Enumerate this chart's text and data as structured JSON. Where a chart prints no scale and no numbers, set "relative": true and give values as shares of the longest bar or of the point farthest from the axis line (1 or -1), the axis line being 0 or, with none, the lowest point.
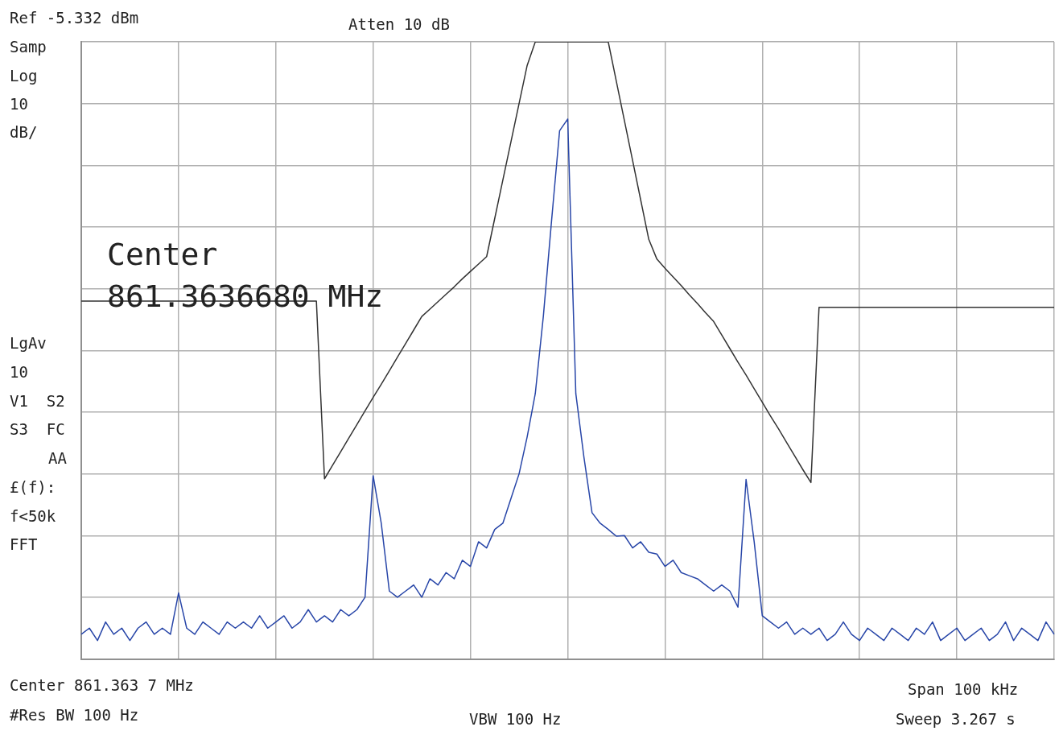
{
  "chart_data": {
    "type": "line",
    "relative": true,
    "grid": true,
    "legend": false,
    "marker": "none",
    "line_style": "solid",
    "categories": [
      null,
      null,
      null,
      null,
      null,
      null,
      null,
      null,
      null,
      null,
      null,
      null,
      null,
      null,
      null,
      null,
      null,
      null,
      null,
      null,
      null,
      null,
      null,
      null,
      null,
      null,
      null,
      null,
      null,
      null,
      null,
      null,
      null,
      null,
      null,
      null,
      null,
      null,
      null,
      null,
      null,
      null,
      null,
      null,
      null,
      null,
      null,
      null,
      null,
      null,
      null,
      null,
      null,
      null,
      null,
      null,
      null,
      null,
      null,
      null,
      null,
      null,
      null,
      null,
      null,
      null,
      null,
      null,
      null,
      null,
      null,
      null,
      null,
      null,
      null,
      null,
      null,
      null,
      null,
      null,
      null,
      null,
      null,
      null,
      null,
      null,
      null,
      null,
      null,
      null,
      null,
      null,
      null,
      null,
      null,
      null,
      null,
      null,
      null,
      null,
      null,
      null,
      null,
      null,
      null,
      null,
      null,
      null,
      null,
      null,
      null,
      null,
      null,
      null,
      null,
      null,
      null,
      null,
      null,
      null,
      null
    ],
    "series": [
      {
        "color": "#2846a8",
        "values": [
          0.04,
          0.05,
          0.03,
          0.06,
          0.04,
          0.05,
          0.03,
          0.05,
          0.06,
          0.04,
          0.05,
          0.04,
          0.107,
          0.05,
          0.04,
          0.06,
          0.05,
          0.04,
          0.06,
          0.05,
          0.06,
          0.05,
          0.07,
          0.05,
          0.06,
          0.07,
          0.05,
          0.06,
          0.08,
          0.06,
          0.07,
          0.06,
          0.08,
          0.07,
          0.08,
          0.1,
          0.297,
          0.22,
          0.11,
          0.1,
          0.11,
          0.12,
          0.1,
          0.13,
          0.12,
          0.14,
          0.13,
          0.16,
          0.15,
          0.19,
          0.18,
          0.21,
          0.22,
          0.26,
          0.3,
          0.36,
          0.43,
          0.556,
          0.709,
          0.856,
          0.875,
          0.43,
          0.327,
          0.237,
          0.22,
          0.21,
          0.199,
          0.2,
          0.18,
          0.19,
          0.173,
          0.17,
          0.15,
          0.16,
          0.14,
          0.135,
          0.13,
          0.12,
          0.11,
          0.12,
          0.11,
          0.084,
          0.291,
          0.19,
          0.07,
          0.06,
          0.05,
          0.06,
          0.04,
          0.05,
          0.04,
          0.05,
          0.03,
          0.04,
          0.06,
          0.04,
          0.03,
          0.05,
          0.04,
          0.03,
          0.05,
          0.04,
          0.03,
          0.05,
          0.04,
          0.06,
          0.03,
          0.04,
          0.05,
          0.03,
          0.04,
          0.05,
          0.03,
          0.04,
          0.06,
          0.03,
          0.05,
          0.04,
          0.03,
          0.06,
          0.04
        ]
      },
      {
        "color": "#333333",
        "values": [
          0.58,
          0.58,
          0.58,
          0.58,
          0.58,
          0.58,
          0.58,
          0.58,
          0.58,
          0.58,
          0.58,
          0.58,
          0.58,
          0.58,
          0.58,
          0.58,
          0.58,
          0.58,
          0.58,
          0.58,
          0.58,
          0.58,
          0.58,
          0.58,
          0.58,
          0.58,
          0.58,
          0.58,
          0.58,
          0.58,
          0.292,
          0.314,
          0.336,
          0.358,
          0.38,
          0.402,
          0.424,
          0.445,
          0.467,
          0.489,
          0.511,
          0.533,
          0.555,
          0.567,
          0.579,
          0.591,
          0.603,
          0.616,
          0.628,
          0.64,
          0.652,
          0.714,
          0.776,
          0.838,
          0.9,
          0.962,
          1,
          1,
          1,
          1,
          1,
          1,
          1,
          1,
          1,
          1,
          0.936,
          0.872,
          0.808,
          0.744,
          0.68,
          0.648,
          0.633,
          0.619,
          0.605,
          0.59,
          0.576,
          0.561,
          0.547,
          0.525,
          0.503,
          0.481,
          0.46,
          0.438,
          0.416,
          0.394,
          0.373,
          0.351,
          0.329,
          0.307,
          0.286,
          0.57,
          0.57,
          0.57,
          0.57,
          0.57,
          0.57,
          0.57,
          0.57,
          0.57,
          0.57,
          0.57,
          0.57,
          0.57,
          0.57,
          0.57,
          0.57,
          0.57,
          0.57,
          0.57,
          0.57,
          0.57,
          0.57,
          0.57,
          0.57,
          0.57,
          0.57,
          0.57,
          0.57,
          0.57,
          0.57
        ]
      }
    ],
    "annotations": [
      "Ref -5.332 dBm",
      "Atten 10 dB",
      "Samp",
      "Log",
      "10",
      "dB/",
      "LgAv",
      "10",
      "V1  S2",
      "S3  FC",
      "AA",
      "£(f):",
      "f<50k",
      "FFT",
      "Center",
      "861.3636680 MHz",
      "Center 861.363 7 MHz",
      "Span 100 kHz",
      "#Res BW 100 Hz",
      "VBW 100 Hz",
      "Sweep 3.267 s"
    ]
  }
}
